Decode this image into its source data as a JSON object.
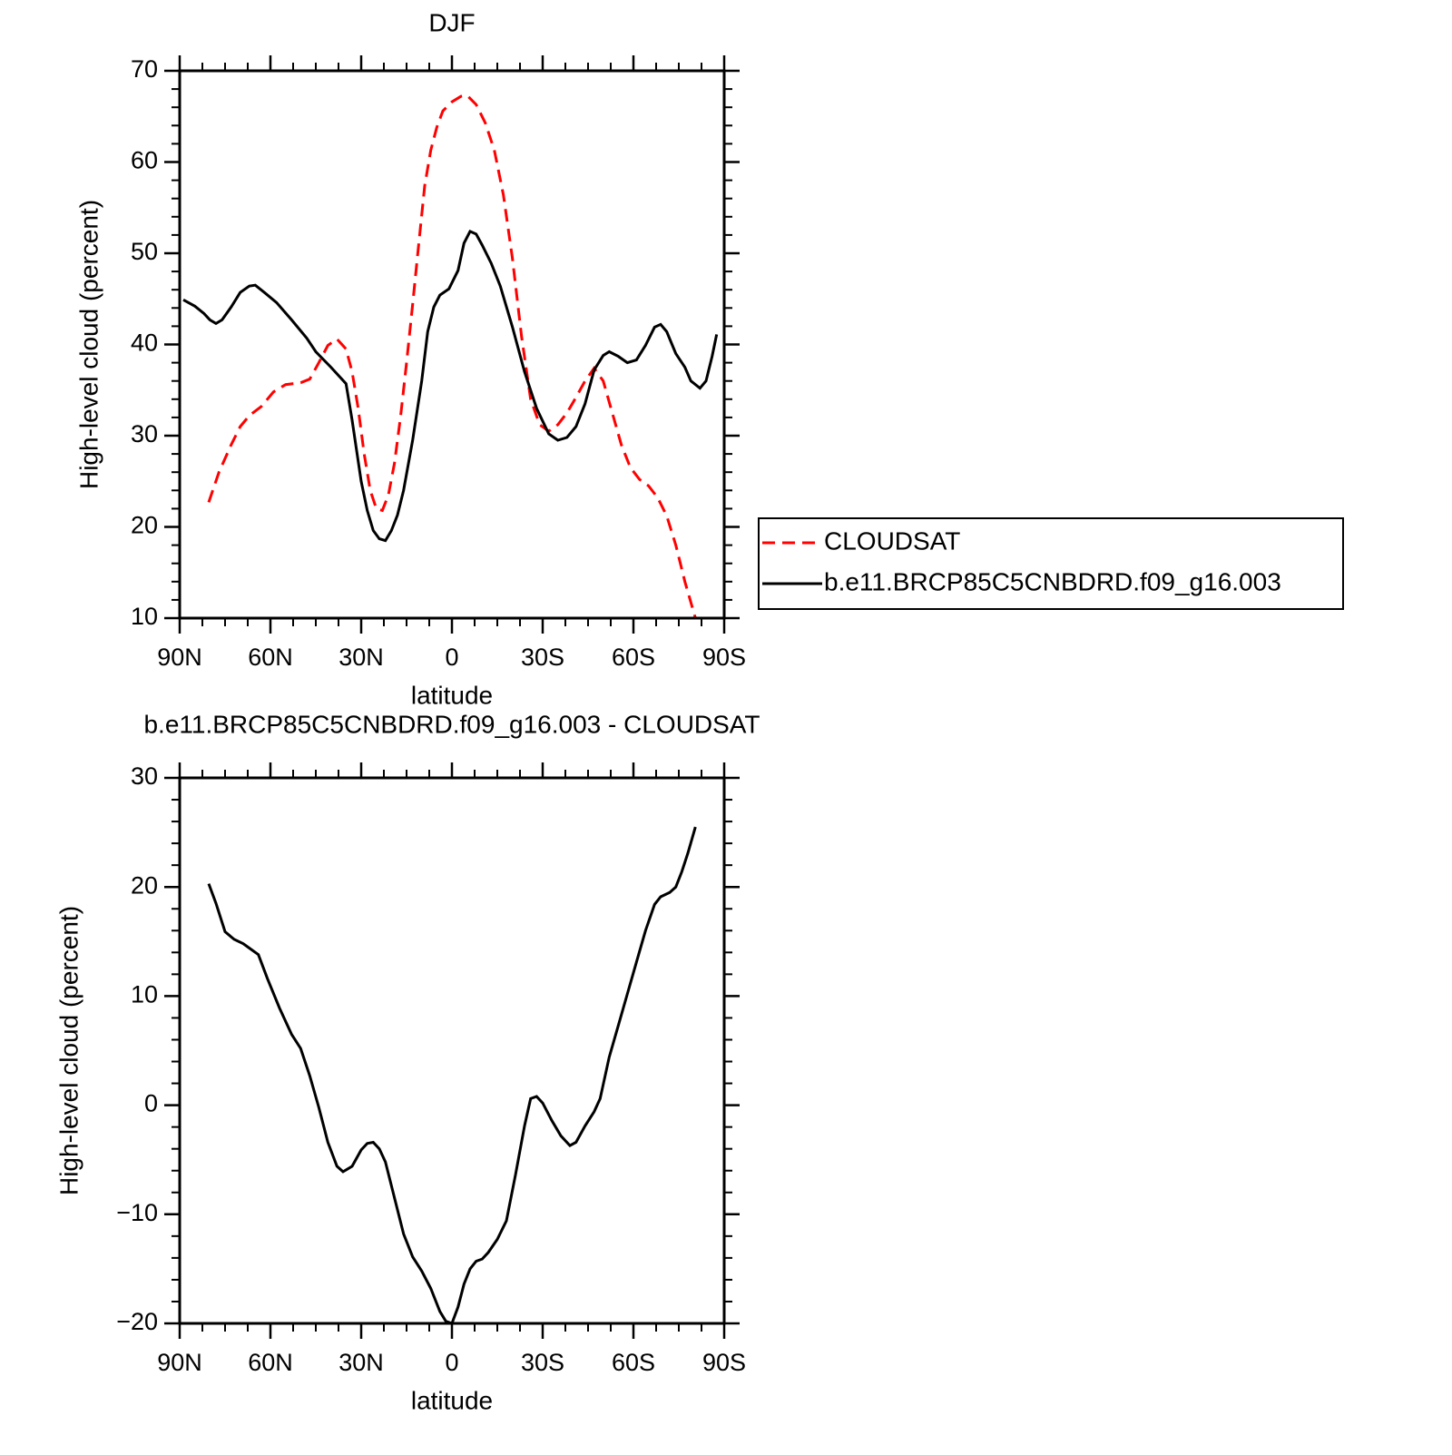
{
  "chart_data": [
    {
      "type": "line",
      "title": "DJF",
      "xlabel": "latitude",
      "ylabel": "High-level cloud (percent)",
      "xlim": [
        90,
        -90
      ],
      "xticks": [
        {
          "value": 90,
          "label": "90N"
        },
        {
          "value": 60,
          "label": "60N"
        },
        {
          "value": 30,
          "label": "30N"
        },
        0,
        {
          "value": -30,
          "label": "30S"
        },
        {
          "value": -60,
          "label": "60S"
        },
        {
          "value": -90,
          "label": "90S"
        }
      ],
      "xminorticks": [
        82.5,
        75,
        67.5,
        52.5,
        45,
        37.5,
        22.5,
        15,
        7.5,
        -7.5,
        -15,
        -22.5,
        -37.5,
        -45,
        -52.5,
        -67.5,
        -75,
        -82.5
      ],
      "ylim": [
        10,
        70
      ],
      "yticks": [
        10,
        20,
        30,
        40,
        50,
        60,
        70
      ],
      "yminorticks": [
        12,
        14,
        16,
        18,
        22,
        24,
        26,
        28,
        32,
        34,
        36,
        38,
        42,
        44,
        46,
        48,
        52,
        54,
        56,
        58,
        62,
        64,
        66,
        68
      ],
      "legend": "right",
      "series": [
        {
          "name": "CLOUDSAT",
          "color": "#ff0000",
          "linestyle": "dashed",
          "x": [
            80.4,
            77,
            73,
            70,
            67,
            63,
            59,
            55,
            50,
            47,
            44,
            41,
            38,
            35,
            33,
            31,
            29,
            27,
            25,
            23,
            21,
            19,
            17,
            15,
            13,
            11,
            9,
            7,
            5,
            3,
            0,
            -3,
            -5,
            -8,
            -11,
            -14,
            -17,
            -20,
            -23,
            -26,
            -29,
            -32,
            -35,
            -38,
            -41,
            -44,
            -47,
            -50,
            -53,
            -56,
            -59,
            -62,
            -65,
            -68,
            -71,
            -74,
            -77,
            -80.5
          ],
          "values": [
            22.7,
            26.0,
            29.0,
            31.0,
            32.2,
            33.2,
            34.8,
            35.6,
            35.8,
            36.2,
            38.0,
            39.9,
            40.6,
            39.5,
            37.0,
            33.0,
            28.0,
            24.0,
            22.0,
            21.8,
            23.5,
            27.0,
            32.0,
            38.0,
            44.4,
            50.9,
            57.4,
            61.3,
            63.8,
            65.6,
            66.6,
            67.2,
            67.3,
            66.3,
            64.3,
            61.3,
            56.4,
            49.4,
            40.9,
            34.0,
            31.2,
            30.5,
            31.2,
            32.5,
            34.2,
            36.0,
            37.4,
            36.0,
            32.5,
            29.0,
            26.5,
            25.2,
            24.5,
            23.2,
            21.2,
            18.0,
            14.0,
            10.0
          ]
        },
        {
          "name": "b.e11.BRCP85C5CNBDRD.f09_g16.003",
          "color": "#000000",
          "linestyle": "solid",
          "x": [
            88.8,
            85,
            82,
            80,
            78,
            76,
            73,
            70,
            67,
            65,
            62,
            58,
            53,
            48,
            45,
            40,
            35,
            33,
            30,
            28,
            26,
            24,
            22,
            20,
            18,
            16,
            13,
            10,
            8,
            6,
            4,
            1,
            -2,
            -4,
            -6,
            -8,
            -10,
            -13,
            -16,
            -20,
            -24,
            -28,
            -32,
            -35,
            -38,
            -41,
            -44,
            -47,
            -50,
            -52,
            -55,
            -58,
            -61,
            -64,
            -67,
            -69,
            -71,
            -74,
            -77,
            -79,
            -82,
            -84,
            -86,
            -87.5
          ],
          "values": [
            44.9,
            44.2,
            43.4,
            42.7,
            42.3,
            42.7,
            44.1,
            45.7,
            46.4,
            46.5,
            45.7,
            44.6,
            42.7,
            40.7,
            39.2,
            37.5,
            35.7,
            31.7,
            25.0,
            21.8,
            19.6,
            18.7,
            18.5,
            19.6,
            21.3,
            24.0,
            29.5,
            36.0,
            41.4,
            44.1,
            45.4,
            46.1,
            48.1,
            51.1,
            52.4,
            52.1,
            50.9,
            48.9,
            46.4,
            41.9,
            37.0,
            33.0,
            30.2,
            29.5,
            29.8,
            31.0,
            33.5,
            37.2,
            38.8,
            39.2,
            38.7,
            38.0,
            38.3,
            39.9,
            41.9,
            42.2,
            41.4,
            39.0,
            37.5,
            36.0,
            35.2,
            36.0,
            38.7,
            41.1
          ]
        }
      ]
    },
    {
      "type": "line",
      "title": "b.e11.BRCP85C5CNBDRD.f09_g16.003 - CLOUDSAT",
      "xlabel": "latitude",
      "ylabel": "High-level cloud (percent)",
      "xlim": [
        90,
        -90
      ],
      "xticks": [
        {
          "value": 90,
          "label": "90N"
        },
        {
          "value": 60,
          "label": "60N"
        },
        {
          "value": 30,
          "label": "30N"
        },
        0,
        {
          "value": -30,
          "label": "30S"
        },
        {
          "value": -60,
          "label": "60S"
        },
        {
          "value": -90,
          "label": "90S"
        }
      ],
      "xminorticks": [
        82.5,
        75,
        67.5,
        52.5,
        45,
        37.5,
        22.5,
        15,
        7.5,
        -7.5,
        -15,
        -22.5,
        -37.5,
        -45,
        -52.5,
        -67.5,
        -75,
        -82.5
      ],
      "ylim": [
        -20,
        30
      ],
      "yticks": [
        {
          "value": -20,
          "label": "−20"
        },
        {
          "value": -10,
          "label": "−10"
        },
        0,
        10,
        20,
        30
      ],
      "yminorticks": [
        -18,
        -16,
        -14,
        -12,
        -8,
        -6,
        -4,
        -2,
        2,
        4,
        6,
        8,
        12,
        14,
        16,
        18,
        22,
        24,
        26,
        28
      ],
      "series": [
        {
          "color": "#000000",
          "linestyle": "solid",
          "x": [
            80.4,
            78,
            75,
            72,
            69,
            67,
            64,
            61,
            57,
            53,
            50,
            47,
            44,
            41,
            38,
            36,
            33,
            30,
            28,
            26,
            24,
            22,
            19,
            16,
            13,
            10,
            7,
            4,
            2,
            0,
            -2,
            -4,
            -6,
            -8,
            -10,
            -12,
            -15,
            -18,
            -21,
            -24,
            -26,
            -28,
            -30,
            -33,
            -36,
            -39,
            -41,
            -44,
            -47,
            -49,
            -52,
            -55,
            -58,
            -61,
            -64,
            -67,
            -69,
            -72,
            -74,
            -76,
            -78,
            -80.5
          ],
          "values": [
            20.3,
            18.5,
            15.9,
            15.2,
            14.8,
            14.4,
            13.8,
            11.6,
            8.9,
            6.5,
            5.2,
            2.7,
            -0.2,
            -3.4,
            -5.6,
            -6.1,
            -5.6,
            -4.1,
            -3.5,
            -3.4,
            -4.0,
            -5.2,
            -8.5,
            -11.8,
            -13.9,
            -15.2,
            -16.8,
            -18.9,
            -19.8,
            -20.0,
            -18.5,
            -16.4,
            -15.0,
            -14.3,
            -14.1,
            -13.5,
            -12.3,
            -10.6,
            -6.4,
            -1.9,
            0.6,
            0.8,
            0.2,
            -1.4,
            -2.8,
            -3.7,
            -3.4,
            -1.9,
            -0.6,
            0.6,
            4.4,
            7.3,
            10.2,
            13.1,
            16.0,
            18.4,
            19.1,
            19.5,
            20.0,
            21.4,
            23.1,
            25.5
          ]
        }
      ]
    }
  ]
}
